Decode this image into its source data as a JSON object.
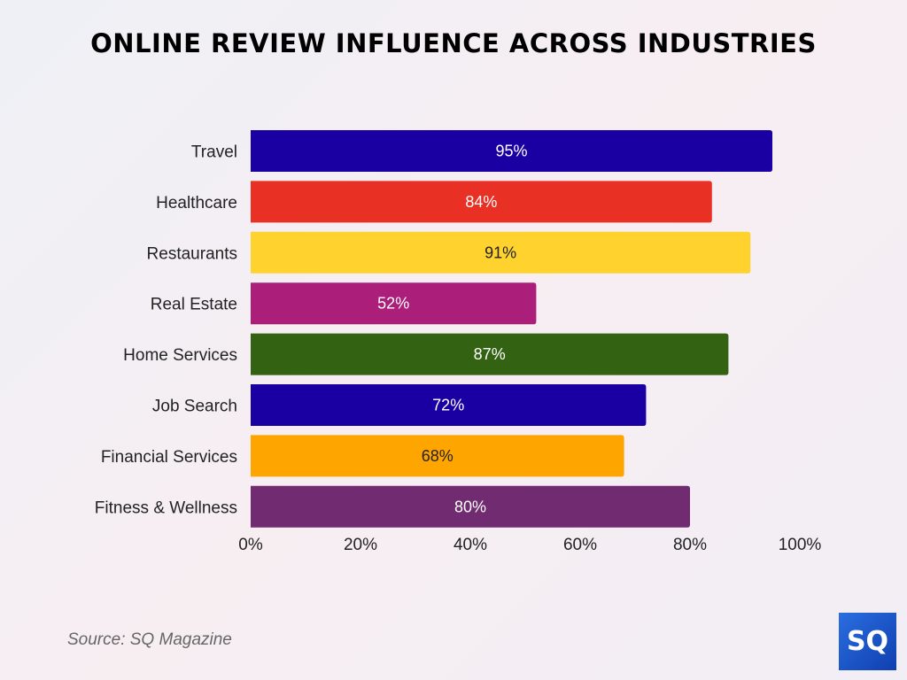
{
  "chart_data": {
    "type": "bar",
    "orientation": "horizontal",
    "title": "ONLINE REVIEW INFLUENCE ACROSS INDUSTRIES",
    "categories": [
      "Travel",
      "Healthcare",
      "Restaurants",
      "Real Estate",
      "Home Services",
      "Job Search",
      "Financial Services",
      "Fitness & Wellness"
    ],
    "values": [
      95,
      84,
      91,
      52,
      87,
      72,
      68,
      80
    ],
    "data_labels": [
      "95%",
      "84%",
      "91%",
      "52%",
      "87%",
      "72%",
      "68%",
      "80%"
    ],
    "colors": [
      "#1a00a3",
      "#e83124",
      "#ffd22e",
      "#ab1e7a",
      "#336213",
      "#1a00a3",
      "#ffa500",
      "#712b70"
    ],
    "label_colors": [
      "#ffffff",
      "#ffffff",
      "#222222",
      "#ffffff",
      "#ffffff",
      "#ffffff",
      "#222222",
      "#ffffff"
    ],
    "xlim": [
      0,
      100
    ],
    "x_ticks": [
      "0%",
      "20%",
      "40%",
      "60%",
      "80%",
      "100%"
    ],
    "xlabel": "",
    "ylabel": "",
    "grid": false,
    "legend": "none"
  },
  "source": "Source: SQ Magazine",
  "logo": {
    "text": "SQ"
  }
}
